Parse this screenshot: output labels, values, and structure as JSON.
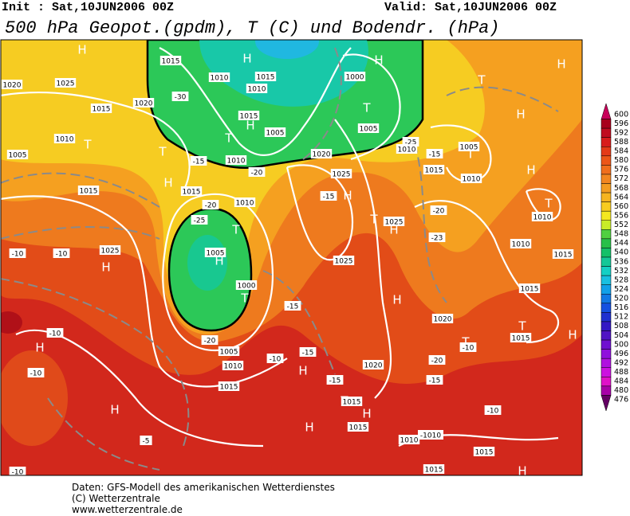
{
  "header": {
    "init": "Init : Sat,10JUN2006  00Z",
    "valid": "Valid: Sat,10JUN2006  00Z",
    "title": "500 hPa Geopot.(gpdm), T (C) und Bodendr. (hPa)"
  },
  "legend": {
    "ticks": [
      600,
      596,
      592,
      588,
      584,
      580,
      576,
      572,
      568,
      564,
      560,
      556,
      552,
      548,
      544,
      540,
      536,
      532,
      528,
      524,
      520,
      516,
      512,
      508,
      504,
      500,
      496,
      492,
      488,
      484,
      480,
      476
    ],
    "colors": [
      "#c8005a",
      "#a8001c",
      "#c00c20",
      "#d81c1c",
      "#e43a18",
      "#ec5618",
      "#f06e1c",
      "#f28620",
      "#f49c20",
      "#f6b420",
      "#f8cc20",
      "#f4e820",
      "#c8ec28",
      "#50d040",
      "#28c048",
      "#14c068",
      "#14c898",
      "#14d0c4",
      "#18c0e0",
      "#10a0e8",
      "#1078e4",
      "#1450e0",
      "#2030d0",
      "#3418c4",
      "#5014c4",
      "#7010d0",
      "#9010dc",
      "#b010e0",
      "#cc10e0",
      "#e010c8",
      "#a800a8",
      "#640064"
    ]
  },
  "map_labels": [
    "H",
    "1015",
    "H",
    "1010",
    "1015",
    "1000",
    "H",
    "T",
    "H",
    "1020",
    "1025",
    "1020",
    "1015",
    "-30",
    "1010",
    "T",
    "H",
    "1015",
    "H",
    "T",
    "1005",
    "1005",
    "-25",
    "1010",
    "T",
    "1010",
    "1005",
    "T",
    "1005",
    "T",
    "1010",
    "1020",
    "-20",
    "1025",
    "-15",
    "1015",
    "H",
    "1015",
    "1015",
    "-15",
    "H",
    "1010",
    "T",
    "1010",
    "-20",
    "1010",
    "-15",
    "H",
    "T",
    "1025",
    "H",
    "-20",
    "-25",
    "T",
    "1025",
    "1005",
    "H",
    "-23",
    "1010",
    "1015",
    "-10",
    "-10",
    "H",
    "1025",
    "1000",
    "T",
    "-15",
    "1015",
    "H",
    "1020",
    "T",
    "1015",
    "H",
    "-10",
    "H",
    "-20",
    "1005",
    "-10",
    "-15",
    "1010",
    "T",
    "-10",
    "-20",
    "H",
    "1020",
    "-10",
    "-15",
    "-15",
    "1015",
    "H",
    "T",
    "1015",
    "H",
    "-10",
    "H",
    "1015",
    "-5",
    "1010",
    "-1010",
    "1015",
    "1015",
    "H",
    "-10"
  ],
  "footer": [
    "Daten: GFS-Modell des amerikanischen Wetterdienstes",
    "(C) Wetterzentrale",
    "www.wetterzentrale.de"
  ]
}
